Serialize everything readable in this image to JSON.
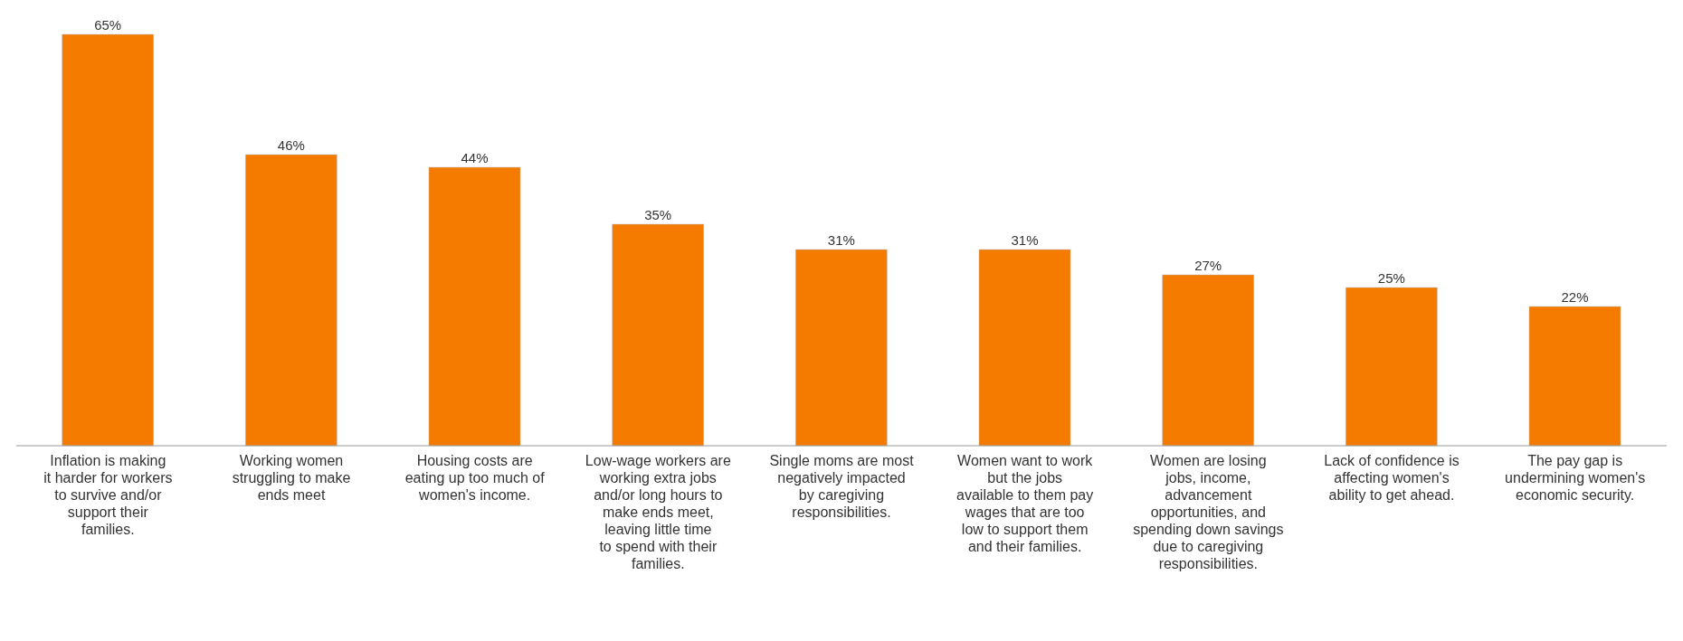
{
  "chart_data": {
    "type": "bar",
    "categories": [
      "Inflation is making it harder for workers to survive and/or support their families.",
      "Working women struggling to make ends meet",
      "Housing costs are eating up too much of women's income.",
      "Low-wage workers are working extra jobs and/or long hours to make ends meet, leaving little time to spend with their families.",
      "Single moms are most negatively impacted by caregiving responsibilities.",
      "Women want to work but the jobs available to them pay wages that are too low to support them and their families.",
      "Women are losing jobs, income, advancement opportunities, and spending down savings due to caregiving responsibilities.",
      "Lack of confidence is affecting women's ability to get ahead.",
      "The pay gap is undermining women's economic security."
    ],
    "values": [
      65,
      46,
      44,
      35,
      31,
      31,
      27,
      25,
      22
    ],
    "value_labels": [
      "65%",
      "46%",
      "44%",
      "35%",
      "31%",
      "31%",
      "27%",
      "25%",
      "22%"
    ],
    "color": "#f47b00",
    "grid": false,
    "legend": false
  }
}
